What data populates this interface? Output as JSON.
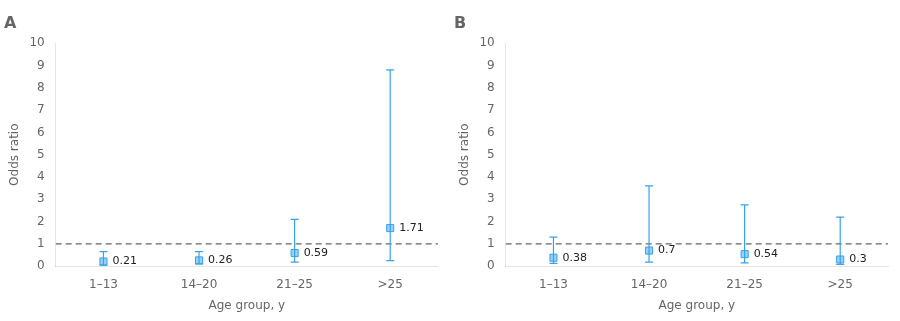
{
  "chart_data": [
    {
      "type": "scatter",
      "title": "A",
      "categories": [
        "1–13",
        "14–20",
        "21–25",
        ">25"
      ],
      "values": [
        0.21,
        0.26,
        0.59,
        1.71
      ],
      "ci_lower": [
        0.05,
        0.1,
        0.18,
        0.25
      ],
      "ci_upper": [
        0.65,
        0.65,
        2.1,
        8.8
      ],
      "reference_line": 1.0,
      "xlabel": "Age group, y",
      "ylabel": "Odds ratio",
      "ylim": [
        0,
        10
      ],
      "yticks": [
        0,
        1,
        2,
        3,
        4,
        5,
        6,
        7,
        8,
        9,
        10
      ],
      "marker": "square",
      "data_labels": true,
      "grid": false
    },
    {
      "type": "scatter",
      "title": "B",
      "categories": [
        "1–13",
        "14–20",
        "21–25",
        ">25"
      ],
      "values": [
        0.38,
        0.7,
        0.54,
        0.3
      ],
      "ci_lower": [
        0.13,
        0.18,
        0.15,
        0.08
      ],
      "ci_upper": [
        1.3,
        3.6,
        2.75,
        2.2
      ],
      "reference_line": 1.0,
      "xlabel": "Age group, y",
      "ylabel": "Odds ratio",
      "ylim": [
        0,
        10
      ],
      "yticks": [
        0,
        1,
        2,
        3,
        4,
        5,
        6,
        7,
        8,
        9,
        10
      ],
      "marker": "square",
      "data_labels": true,
      "grid": false
    }
  ]
}
